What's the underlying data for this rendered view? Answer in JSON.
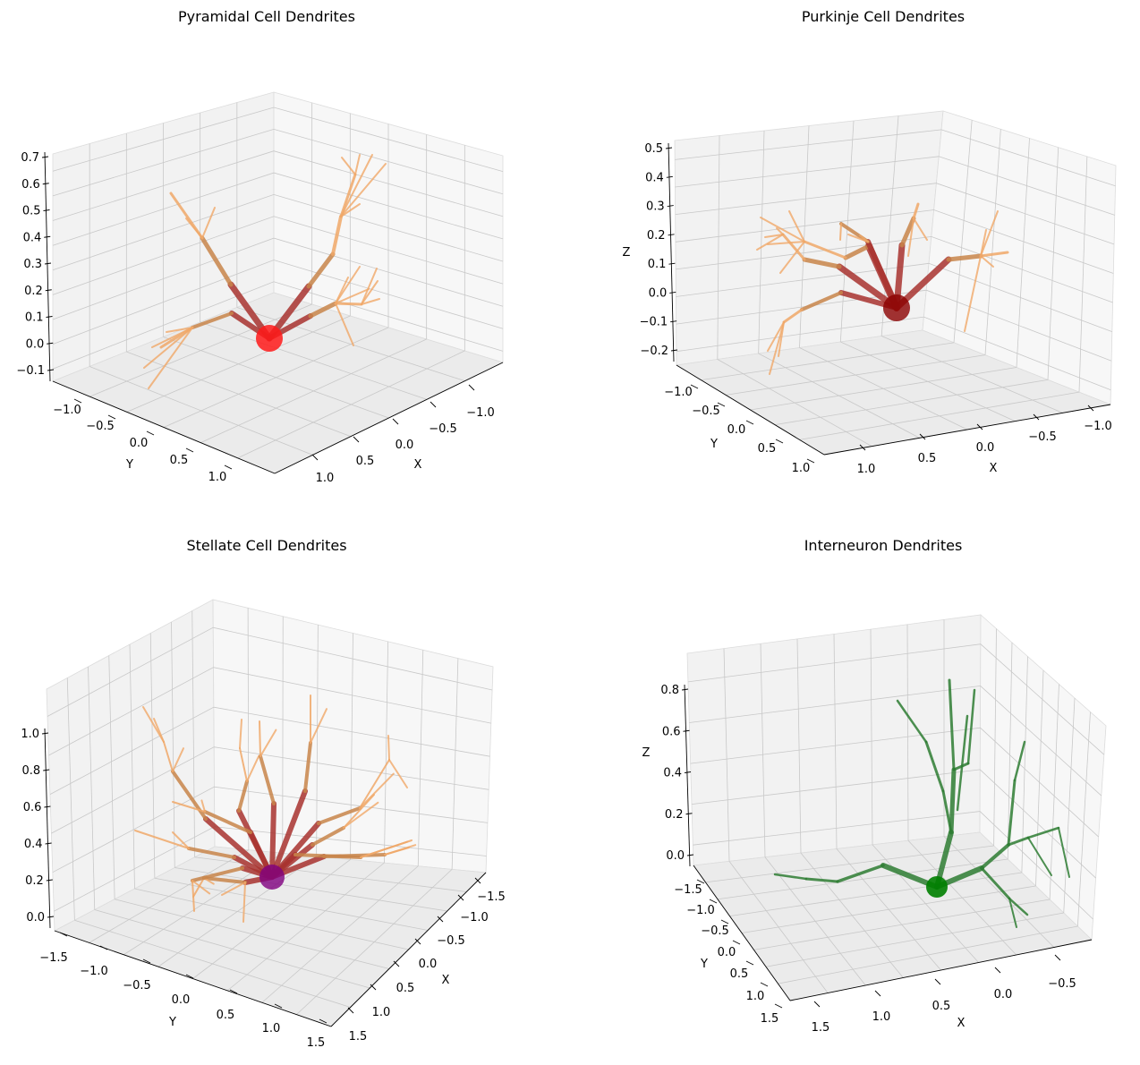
{
  "figure": {
    "background": "#ffffff",
    "pane_colors": [
      "#f2f2f2",
      "#ebebeb",
      "#f7f7f7"
    ],
    "grid_color": "#c8c8c8"
  },
  "chart_data": [
    {
      "type": "3d-line",
      "title": "Pyramidal Cell Dendrites",
      "xlabel": "X",
      "ylabel": "Y",
      "zlabel": "",
      "xticks": [
        "−1.0",
        "−0.5",
        "0.0",
        "0.5",
        "1.0"
      ],
      "yticks": [
        "−1.0",
        "−0.5",
        "0.0",
        "0.5",
        "1.0"
      ],
      "zticks": [
        "−0.1",
        "0.0",
        "0.1",
        "0.2",
        "0.3",
        "0.4",
        "0.5",
        "0.6",
        "0.7"
      ],
      "xlim": [
        -1.2,
        1.2
      ],
      "ylim": [
        -1.2,
        1.2
      ],
      "zlim": [
        -0.12,
        0.7
      ],
      "soma_color": "#ff1a1a",
      "trunk_color": "#a8322f",
      "branch_color": "#c8854a",
      "tip_color": "#f0a868"
    },
    {
      "type": "3d-line",
      "title": "Purkinje Cell Dendrites",
      "xlabel": "X",
      "ylabel": "Y",
      "zlabel": "Z",
      "xticks": [
        "−1.0",
        "−0.5",
        "0.0",
        "0.5",
        "1.0"
      ],
      "yticks": [
        "−1.0",
        "−0.5",
        "0.0",
        "0.5",
        "1.0"
      ],
      "zticks": [
        "−0.2",
        "−0.1",
        "0.0",
        "0.1",
        "0.2",
        "0.3",
        "0.4",
        "0.5"
      ],
      "xlim": [
        -1.2,
        1.2
      ],
      "ylim": [
        -1.2,
        1.2
      ],
      "zlim": [
        -0.25,
        0.5
      ],
      "soma_color": "#8b0000",
      "trunk_color": "#a8322f",
      "branch_color": "#c8854a",
      "tip_color": "#f0a868"
    },
    {
      "type": "3d-line",
      "title": "Stellate Cell Dendrites",
      "xlabel": "X",
      "ylabel": "Y",
      "zlabel": "",
      "xticks": [
        "−1.5",
        "−1.0",
        "−0.5",
        "0.0",
        "0.5",
        "1.0",
        "1.5"
      ],
      "yticks": [
        "−1.5",
        "−1.0",
        "−0.5",
        "0.0",
        "0.5",
        "1.0",
        "1.5"
      ],
      "zticks": [
        "0.0",
        "0.2",
        "0.4",
        "0.6",
        "0.8",
        "1.0"
      ],
      "xlim": [
        -1.6,
        1.6
      ],
      "ylim": [
        -1.6,
        1.6
      ],
      "zlim": [
        -0.05,
        1.0
      ],
      "soma_color": "#800080",
      "trunk_color": "#a8322f",
      "branch_color": "#c8854a",
      "tip_color": "#f0a868"
    },
    {
      "type": "3d-line",
      "title": "Interneuron Dendrites",
      "xlabel": "X",
      "ylabel": "Y",
      "zlabel": "Z",
      "xticks": [
        "−0.5",
        "0.0",
        "0.5",
        "1.0",
        "1.5"
      ],
      "yticks": [
        "−1.5",
        "−1.0",
        "−0.5",
        "0.0",
        "0.5",
        "1.0",
        "1.5"
      ],
      "zticks": [
        "0.0",
        "0.2",
        "0.4",
        "0.6",
        "0.8"
      ],
      "xlim": [
        -0.8,
        1.6
      ],
      "ylim": [
        -1.6,
        1.6
      ],
      "zlim": [
        -0.05,
        0.9
      ],
      "soma_color": "#008000",
      "trunk_color": "#2e7d32",
      "branch_color": "#2e7d32",
      "tip_color": "#2e7d32"
    }
  ]
}
